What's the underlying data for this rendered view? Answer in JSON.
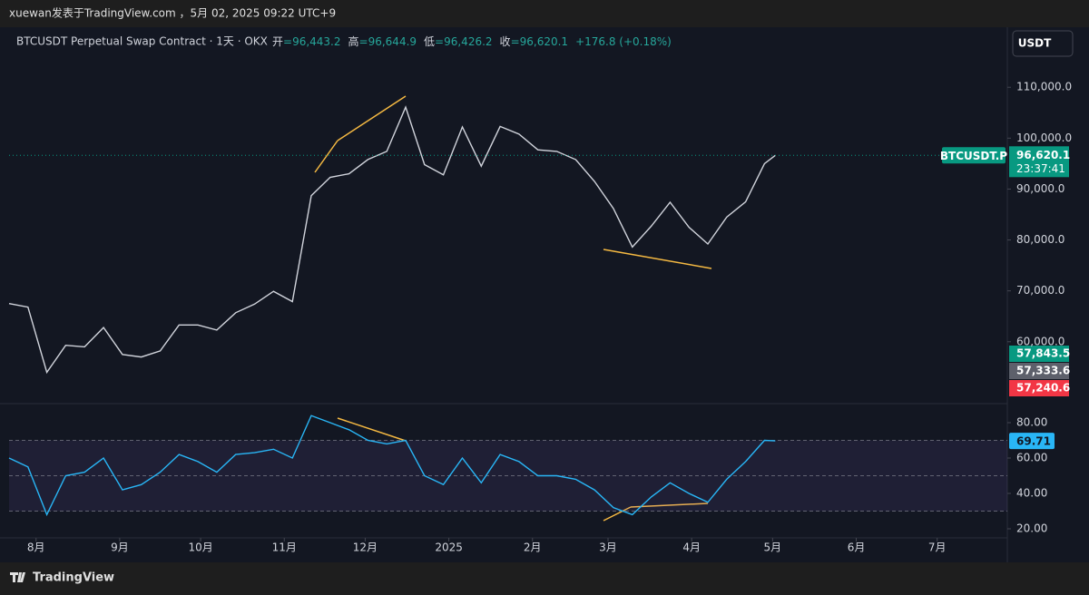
{
  "header": {
    "title": "xuewan发表于TradingView.com ，5月 02, 2025 09:22 UTC+9"
  },
  "legend": {
    "symbol": "BTCUSDT Perpetual Swap Contract · 1天 · OKX",
    "ohlc": [
      {
        "label": "开",
        "value": "=96,443.2"
      },
      {
        "label": "高",
        "value": "=96,644.9"
      },
      {
        "label": "低",
        "value": "=96,426.2"
      },
      {
        "label": "收",
        "value": "=96,620.1"
      }
    ],
    "change": "+176.8 (+0.18%)"
  },
  "currency_button": "USDT",
  "indicator_labels": [
    {
      "text": "57,843.5",
      "color": "#089981"
    },
    {
      "text": "57,333.6",
      "color": "#5d606b"
    },
    {
      "text": "57,240.6",
      "color": "#f23645"
    }
  ],
  "footer": {
    "brand": "TradingView"
  },
  "chart_data": [
    {
      "type": "line",
      "color": "#d1d4dc",
      "x": [
        0,
        7,
        14,
        21,
        28,
        35,
        42,
        49,
        56,
        63,
        70,
        77,
        84,
        91,
        98,
        105,
        112,
        119,
        126,
        133,
        140,
        147,
        154,
        161,
        168,
        175,
        182,
        189,
        196,
        203,
        210,
        217,
        224,
        231,
        238,
        245,
        252,
        259,
        266,
        273,
        280,
        284
      ],
      "values": [
        67500,
        66800,
        54000,
        59300,
        59000,
        62800,
        57500,
        57000,
        58200,
        63300,
        63300,
        62300,
        65700,
        67400,
        69900,
        67900,
        88700,
        92300,
        93000,
        95800,
        97400,
        106100,
        94800,
        92800,
        102200,
        94500,
        102300,
        100800,
        97700,
        97400,
        95800,
        91500,
        86200,
        78600,
        82700,
        87400,
        82500,
        79200,
        84500,
        87500,
        95000,
        96620.1
      ],
      "last_label": "96,620.1",
      "symbol_tag": "BTCUSDT.P",
      "countdown": "23:37:41",
      "xlim": [
        0,
        370
      ],
      "ylim": [
        48200,
        121800
      ],
      "yticks": [
        {
          "value": 60000,
          "label": "60,000.0"
        },
        {
          "value": 70000,
          "label": "70,000.0"
        },
        {
          "value": 80000,
          "label": "80,000.0"
        },
        {
          "value": 90000,
          "label": "90,000.0"
        },
        {
          "value": 100000,
          "label": "100,000.0"
        },
        {
          "value": 110000,
          "label": "110,000.0"
        }
      ]
    },
    {
      "type": "line",
      "color": "#29b6f6",
      "x": [
        0,
        7,
        14,
        21,
        28,
        35,
        42,
        49,
        56,
        63,
        70,
        77,
        84,
        91,
        98,
        105,
        112,
        119,
        126,
        133,
        140,
        147,
        154,
        161,
        168,
        175,
        182,
        189,
        196,
        203,
        210,
        217,
        224,
        231,
        238,
        245,
        252,
        259,
        266,
        273,
        280,
        284
      ],
      "values": [
        60,
        55,
        28,
        50,
        52,
        60,
        42,
        45,
        52,
        62,
        58,
        52,
        62,
        63,
        65,
        60,
        84,
        80,
        76,
        70,
        68,
        70,
        50,
        45,
        60,
        46,
        62,
        58,
        50,
        50,
        48,
        42,
        32,
        28,
        38,
        46,
        40,
        35,
        48,
        58,
        70,
        69.71
      ],
      "bands": [
        70,
        50,
        30
      ],
      "xlim": [
        0,
        370
      ],
      "ylim": [
        15,
        90
      ],
      "yticks": [
        {
          "value": 20,
          "label": "20.00"
        },
        {
          "value": 40,
          "label": "40.00"
        },
        {
          "value": 60,
          "label": "60.00"
        },
        {
          "value": 80,
          "label": "80.00"
        }
      ],
      "xticks": [
        {
          "value": 10,
          "label": "8月"
        },
        {
          "value": 41,
          "label": "9月"
        },
        {
          "value": 71,
          "label": "10月"
        },
        {
          "value": 102,
          "label": "11月"
        },
        {
          "value": 132,
          "label": "12月"
        },
        {
          "value": 163,
          "label": "2025"
        },
        {
          "value": 194,
          "label": "2月"
        },
        {
          "value": 222,
          "label": "3月"
        },
        {
          "value": 253,
          "label": "4月"
        },
        {
          "value": 283,
          "label": "5月"
        },
        {
          "value": 314,
          "label": "6月"
        },
        {
          "value": 344,
          "label": "7月"
        }
      ]
    }
  ]
}
